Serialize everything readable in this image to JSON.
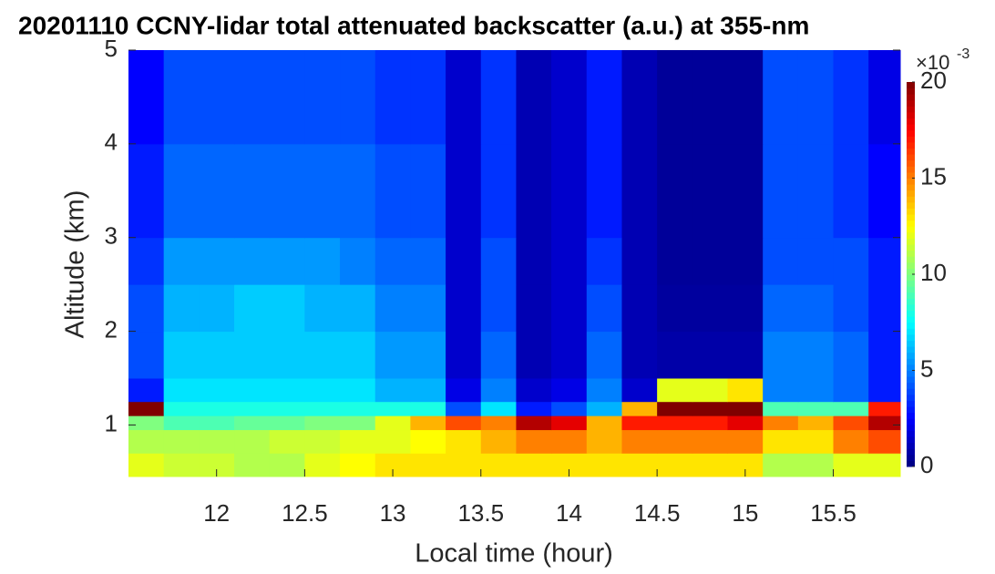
{
  "chart_data": {
    "type": "heatmap",
    "title": "20201110 CCNY-lidar total attenuated backscatter (a.u.) at 355-nm",
    "x_label": "Local time (hour)",
    "y_label": "Altitude (km)",
    "x_bins": [
      11.5,
      11.7,
      11.9,
      12.1,
      12.3,
      12.5,
      12.7,
      12.9,
      13.1,
      13.3,
      13.5,
      13.7,
      13.9,
      14.1,
      14.3,
      14.5,
      14.7,
      14.9,
      15.1,
      15.3,
      15.5,
      15.7,
      15.88
    ],
    "y_bins": [
      0.45,
      0.7,
      0.95,
      1.1,
      1.25,
      1.5,
      2,
      2.5,
      3,
      4,
      5
    ],
    "z": [
      [
        12,
        11.5,
        11.5,
        11,
        11,
        12,
        12.5,
        13,
        13,
        13,
        13,
        13,
        13,
        13,
        13,
        13,
        13,
        13,
        11,
        11,
        12,
        12
      ],
      [
        11,
        11,
        11,
        11,
        11.5,
        11.5,
        12,
        12,
        12.5,
        13,
        14,
        15,
        15,
        14,
        15,
        15,
        15,
        15,
        13,
        13,
        15,
        16
      ],
      [
        10,
        9,
        9,
        9.5,
        9.5,
        10,
        10,
        12,
        14,
        16,
        15,
        19,
        18,
        14,
        17,
        17,
        17,
        18,
        15,
        14,
        16,
        19
      ],
      [
        20,
        8,
        8,
        8,
        8,
        8,
        8,
        8,
        8,
        4,
        7,
        3,
        4,
        6,
        14,
        20,
        20,
        20,
        9,
        9,
        9,
        17
      ],
      [
        3,
        7,
        7,
        7,
        7,
        7,
        7,
        6,
        6,
        2,
        5,
        1.5,
        2,
        5,
        1.5,
        12,
        12,
        13,
        5,
        5,
        4.5,
        3
      ],
      [
        4,
        6.5,
        6.5,
        6.5,
        6.5,
        6.5,
        6.5,
        5.5,
        5.5,
        1.5,
        4.5,
        1,
        1.5,
        4.5,
        1,
        0.8,
        0.8,
        0.8,
        5,
        5,
        4.5,
        3
      ],
      [
        4,
        6,
        6,
        6.5,
        6.5,
        6,
        6,
        5,
        5,
        1.5,
        4,
        1,
        1.5,
        4,
        1,
        0.6,
        0.6,
        0.6,
        4.5,
        4.5,
        4,
        3
      ],
      [
        3.5,
        5.5,
        5.5,
        5.5,
        5.5,
        5.5,
        5,
        4.5,
        4.5,
        1.5,
        4,
        1,
        1.5,
        3.5,
        1,
        0.5,
        0.5,
        0.5,
        4,
        4,
        4,
        3
      ],
      [
        3,
        4.5,
        4.5,
        4.5,
        4.5,
        4.5,
        4.5,
        4,
        4,
        1.5,
        3.5,
        1,
        1.5,
        3,
        1,
        0.5,
        0.5,
        0.5,
        4,
        4,
        3.5,
        2.5
      ],
      [
        2.5,
        4,
        4,
        4,
        4,
        4,
        4,
        3.5,
        3.5,
        1.5,
        3.5,
        1,
        1.5,
        3,
        1,
        0.5,
        0.5,
        0.5,
        4,
        4,
        3.5,
        2
      ]
    ],
    "colormap": "jet",
    "xlim": [
      11.5,
      15.88
    ],
    "xticks": [
      12,
      12.5,
      13,
      13.5,
      14,
      14.5,
      15,
      15.5
    ],
    "ylim": [
      0.45,
      5
    ],
    "yticks": [
      1,
      2,
      3,
      4,
      5
    ],
    "clim": [
      0,
      20
    ],
    "cticks": [
      0,
      5,
      10,
      15,
      20
    ],
    "colorbar_scale": {
      "base": "×10",
      "exponent": "-3"
    }
  }
}
